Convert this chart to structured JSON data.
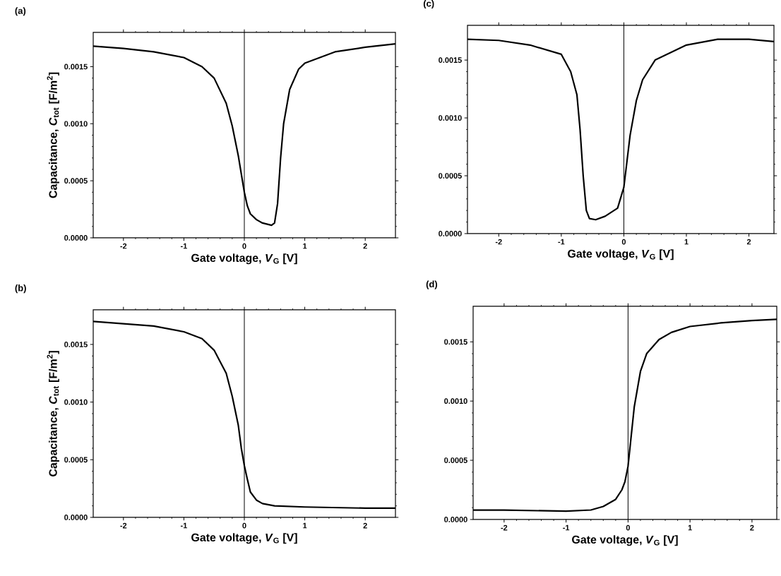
{
  "chart_data": [
    {
      "type": "line",
      "title": "(a)",
      "xlabel": "Gate voltage, *V*$_{G}$ [V]",
      "ylabel": "Capacitance, *C*$_{tot}$ [F/m$^{2}$]",
      "xlim": [
        -2.5,
        2.5
      ],
      "ylim": [
        0,
        0.0018
      ],
      "xticks": [
        -2,
        -1,
        0,
        1,
        2
      ],
      "yticks": [
        {
          "value": 0,
          "label": "0.0000"
        },
        {
          "value": 0.0005,
          "label": "0.0005"
        },
        {
          "value": 0.001,
          "label": "0.0010"
        },
        {
          "value": 0.0015,
          "label": "0.0015"
        }
      ],
      "x": [
        -2.5,
        -2,
        -1.5,
        -1,
        -0.7,
        -0.5,
        -0.3,
        -0.2,
        -0.1,
        0,
        0.05,
        0.1,
        0.2,
        0.3,
        0.45,
        0.5,
        0.55,
        0.6,
        0.65,
        0.75,
        0.9,
        1.0,
        1.5,
        2,
        2.5
      ],
      "series": [
        {
          "color": "#000000",
          "values": [
            0.00168,
            0.00166,
            0.00163,
            0.00158,
            0.0015,
            0.0014,
            0.00118,
            0.00098,
            0.00072,
            0.0004,
            0.00028,
            0.00021,
            0.00016,
            0.00013,
            0.00011,
            0.00013,
            0.0003,
            0.0007,
            0.001,
            0.0013,
            0.00148,
            0.00153,
            0.00163,
            0.00167,
            0.0017
          ]
        }
      ],
      "ref_lines": [
        {
          "axis": "x",
          "value": 0,
          "color": "#000000"
        }
      ]
    },
    {
      "type": "line",
      "title": "(c)",
      "xlabel": "Gate voltage, *V*$_{G}$ [V]",
      "xlim": [
        -2.5,
        2.4
      ],
      "ylim": [
        0,
        0.0018
      ],
      "xticks": [
        -2,
        -1,
        0,
        1,
        2
      ],
      "yticks": [
        {
          "value": 0,
          "label": "0.0000"
        },
        {
          "value": 0.0005,
          "label": "0.0005"
        },
        {
          "value": 0.001,
          "label": "0.0010"
        },
        {
          "value": 0.0015,
          "label": "0.0015"
        }
      ],
      "x": [
        -2.5,
        -2,
        -1.5,
        -1,
        -0.85,
        -0.75,
        -0.7,
        -0.65,
        -0.6,
        -0.55,
        -0.45,
        -0.3,
        -0.1,
        0,
        0.1,
        0.2,
        0.3,
        0.5,
        1,
        1.5,
        2,
        2.4
      ],
      "series": [
        {
          "color": "#000000",
          "values": [
            0.00168,
            0.00167,
            0.00163,
            0.00155,
            0.0014,
            0.0012,
            0.0009,
            0.0005,
            0.0002,
            0.00013,
            0.00012,
            0.00015,
            0.00022,
            0.0004,
            0.00085,
            0.00115,
            0.00133,
            0.0015,
            0.00163,
            0.00168,
            0.00168,
            0.00166
          ]
        }
      ],
      "ref_lines": [
        {
          "axis": "x",
          "value": 0,
          "color": "#000000"
        }
      ]
    },
    {
      "type": "line",
      "title": "(b)",
      "xlabel": "Gate voltage, *V*$_{G}$ [V]",
      "ylabel": "Capacitance, *C*$_{tot}$ [F/m$^{2}$]",
      "xlim": [
        -2.5,
        2.5
      ],
      "ylim": [
        0,
        0.0018
      ],
      "xticks": [
        -2,
        -1,
        0,
        1,
        2
      ],
      "yticks": [
        {
          "value": 0,
          "label": "0.0000"
        },
        {
          "value": 0.0005,
          "label": "0.0005"
        },
        {
          "value": 0.001,
          "label": "0.0010"
        },
        {
          "value": 0.0015,
          "label": "0.0015"
        }
      ],
      "x": [
        -2.5,
        -2,
        -1.5,
        -1,
        -0.7,
        -0.5,
        -0.3,
        -0.2,
        -0.1,
        -0.05,
        0,
        0.05,
        0.1,
        0.2,
        0.3,
        0.5,
        1,
        2,
        2.5
      ],
      "series": [
        {
          "color": "#000000",
          "values": [
            0.0017,
            0.00168,
            0.00166,
            0.00161,
            0.00155,
            0.00145,
            0.00125,
            0.00105,
            0.0008,
            0.0006,
            0.00045,
            0.00033,
            0.00022,
            0.00015,
            0.00012,
            0.0001,
            9e-05,
            8e-05,
            8e-05
          ]
        }
      ],
      "ref_lines": [
        {
          "axis": "x",
          "value": 0,
          "color": "#000000"
        }
      ]
    },
    {
      "type": "line",
      "title": "(d)",
      "xlabel": "Gate voltage, *V*$_{G}$ [V]",
      "xlim": [
        -2.5,
        2.4
      ],
      "ylim": [
        0,
        0.0018
      ],
      "xticks": [
        -2,
        -1,
        0,
        1,
        2
      ],
      "yticks": [
        {
          "value": 0,
          "label": "0.0000"
        },
        {
          "value": 0.0005,
          "label": "0.0005"
        },
        {
          "value": 0.001,
          "label": "0.0010"
        },
        {
          "value": 0.0015,
          "label": "0.0015"
        }
      ],
      "x": [
        -2.5,
        -2,
        -1,
        -0.6,
        -0.4,
        -0.2,
        -0.1,
        -0.05,
        0,
        0.05,
        0.1,
        0.2,
        0.3,
        0.5,
        0.7,
        1,
        1.5,
        2,
        2.4
      ],
      "series": [
        {
          "color": "#000000",
          "values": [
            8e-05,
            8e-05,
            7e-05,
            8e-05,
            0.00011,
            0.00017,
            0.00025,
            0.00032,
            0.00045,
            0.0007,
            0.00095,
            0.00125,
            0.0014,
            0.00152,
            0.00158,
            0.00163,
            0.00166,
            0.00168,
            0.00169
          ]
        }
      ],
      "ref_lines": [
        {
          "axis": "x",
          "value": 0,
          "color": "#000000"
        }
      ]
    }
  ]
}
